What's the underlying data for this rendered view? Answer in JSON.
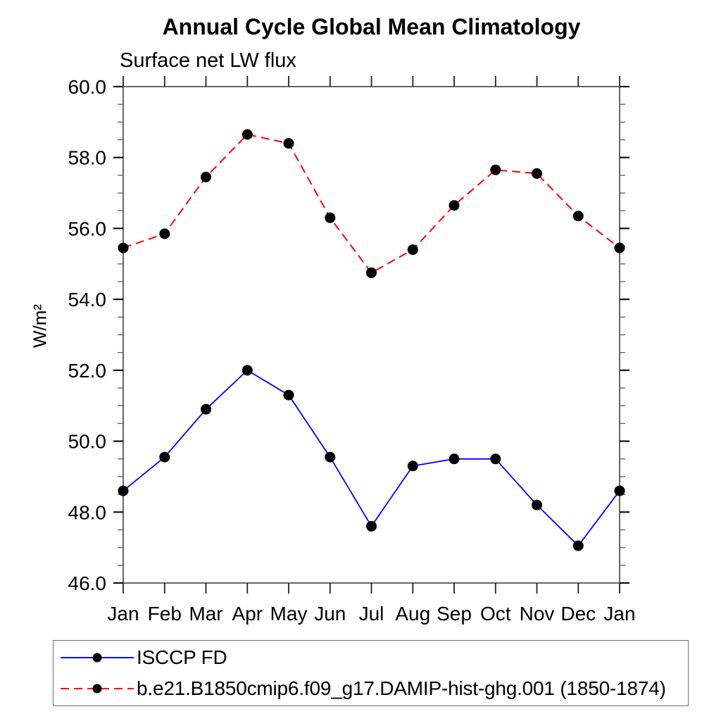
{
  "chart_data": {
    "type": "line",
    "title": "Annual Cycle Global Mean Climatology",
    "subtitle": "Surface net LW flux",
    "ylabel": "W/m²",
    "xlabel": "",
    "categories": [
      "Jan",
      "Feb",
      "Mar",
      "Apr",
      "May",
      "Jun",
      "Jul",
      "Aug",
      "Sep",
      "Oct",
      "Nov",
      "Dec",
      "Jan"
    ],
    "ylim": [
      46.0,
      60.0
    ],
    "ytick_major_step": 2.0,
    "ytick_minor_step": 0.5,
    "ytick_labels": [
      "46.0",
      "48.0",
      "50.0",
      "52.0",
      "54.0",
      "56.0",
      "58.0",
      "60.0"
    ],
    "grid": false,
    "legend_position": "bottom",
    "marker_color": "#000000",
    "series": [
      {
        "name": "ISCCP FD",
        "color": "#0000ff",
        "style": "solid",
        "marker": "circle",
        "values": [
          48.6,
          49.55,
          50.9,
          52.0,
          51.3,
          49.55,
          47.6,
          49.3,
          49.5,
          49.5,
          48.2,
          47.05,
          48.6
        ]
      },
      {
        "name": "b.e21.B1850cmip6.f09_g17.DAMIP-hist-ghg.001 (1850-1874)",
        "color": "#ff0000",
        "style": "dashed",
        "marker": "circle",
        "values": [
          55.45,
          55.85,
          57.45,
          58.65,
          58.4,
          56.3,
          54.75,
          55.4,
          56.65,
          57.65,
          57.55,
          56.35,
          55.45
        ]
      }
    ]
  }
}
